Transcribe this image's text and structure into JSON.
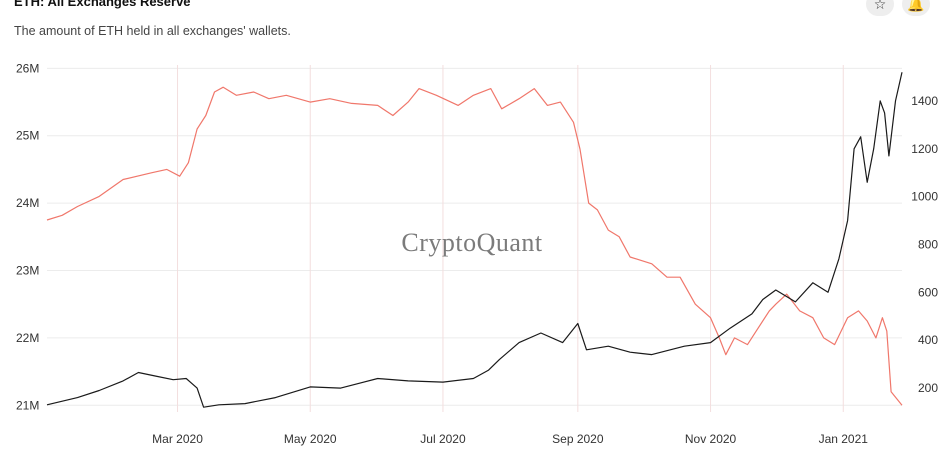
{
  "header": {
    "title": "ETH: All Exchanges Reserve",
    "subtitle": "The amount of ETH held in all exchanges' wallets.",
    "star_icon": "star-icon",
    "bell_icon": "bell-icon"
  },
  "watermark": "CryptoQuant",
  "colors": {
    "reserve_line": "#f0776b",
    "price_line": "#1a1a1a",
    "grid": "#ececec",
    "vgrid": "#f3dede"
  },
  "chart_data": {
    "type": "line",
    "title": "ETH: All Exchanges Reserve",
    "x_type": "date",
    "x_range": [
      "2020-01-01",
      "2021-01-28"
    ],
    "x_ticks": [
      {
        "date": "2020-03-01",
        "label": "Mar 2020"
      },
      {
        "date": "2020-05-01",
        "label": "May 2020"
      },
      {
        "date": "2020-07-01",
        "label": "Jul 2020"
      },
      {
        "date": "2020-09-01",
        "label": "Sep 2020"
      },
      {
        "date": "2020-11-01",
        "label": "Nov 2020"
      },
      {
        "date": "2021-01-01",
        "label": "Jan 2021"
      }
    ],
    "y_left": {
      "range": [
        20900000,
        26050000
      ],
      "ticks": [
        21000000,
        22000000,
        23000000,
        24000000,
        25000000,
        26000000
      ],
      "tick_labels": [
        "21M",
        "22M",
        "23M",
        "24M",
        "25M",
        "26M"
      ]
    },
    "y_right": {
      "range": [
        100,
        1550
      ],
      "ticks": [
        200,
        400,
        600,
        800,
        1000,
        1200,
        1400
      ],
      "tick_labels": [
        "200",
        "400",
        "600",
        "800",
        "1000",
        "1200",
        "1400"
      ]
    },
    "grid": true,
    "series": [
      {
        "axis": "left",
        "points": [
          [
            "2020-01-01",
            23750000
          ],
          [
            "2020-01-08",
            23820000
          ],
          [
            "2020-01-15",
            23950000
          ],
          [
            "2020-01-25",
            24100000
          ],
          [
            "2020-02-05",
            24350000
          ],
          [
            "2020-02-18",
            24450000
          ],
          [
            "2020-02-25",
            24500000
          ],
          [
            "2020-03-02",
            24400000
          ],
          [
            "2020-03-06",
            24600000
          ],
          [
            "2020-03-10",
            25100000
          ],
          [
            "2020-03-14",
            25300000
          ],
          [
            "2020-03-18",
            25650000
          ],
          [
            "2020-03-22",
            25720000
          ],
          [
            "2020-03-28",
            25600000
          ],
          [
            "2020-04-05",
            25650000
          ],
          [
            "2020-04-12",
            25550000
          ],
          [
            "2020-04-20",
            25600000
          ],
          [
            "2020-05-01",
            25500000
          ],
          [
            "2020-05-10",
            25550000
          ],
          [
            "2020-05-20",
            25480000
          ],
          [
            "2020-06-01",
            25450000
          ],
          [
            "2020-06-08",
            25300000
          ],
          [
            "2020-06-15",
            25500000
          ],
          [
            "2020-06-20",
            25700000
          ],
          [
            "2020-06-28",
            25600000
          ],
          [
            "2020-07-08",
            25450000
          ],
          [
            "2020-07-15",
            25600000
          ],
          [
            "2020-07-23",
            25700000
          ],
          [
            "2020-07-28",
            25400000
          ],
          [
            "2020-08-05",
            25550000
          ],
          [
            "2020-08-12",
            25700000
          ],
          [
            "2020-08-18",
            25450000
          ],
          [
            "2020-08-24",
            25500000
          ],
          [
            "2020-08-30",
            25200000
          ],
          [
            "2020-09-02",
            24800000
          ],
          [
            "2020-09-06",
            24000000
          ],
          [
            "2020-09-10",
            23900000
          ],
          [
            "2020-09-15",
            23600000
          ],
          [
            "2020-09-20",
            23500000
          ],
          [
            "2020-09-25",
            23200000
          ],
          [
            "2020-10-05",
            23100000
          ],
          [
            "2020-10-12",
            22900000
          ],
          [
            "2020-10-18",
            22900000
          ],
          [
            "2020-10-25",
            22500000
          ],
          [
            "2020-11-01",
            22300000
          ],
          [
            "2020-11-05",
            22000000
          ],
          [
            "2020-11-08",
            21750000
          ],
          [
            "2020-11-12",
            22000000
          ],
          [
            "2020-11-18",
            21900000
          ],
          [
            "2020-11-22",
            22100000
          ],
          [
            "2020-11-28",
            22400000
          ],
          [
            "2020-12-01",
            22500000
          ],
          [
            "2020-12-06",
            22650000
          ],
          [
            "2020-12-12",
            22400000
          ],
          [
            "2020-12-18",
            22300000
          ],
          [
            "2020-12-23",
            22000000
          ],
          [
            "2020-12-28",
            21900000
          ],
          [
            "2021-01-03",
            22300000
          ],
          [
            "2021-01-08",
            22400000
          ],
          [
            "2021-01-12",
            22250000
          ],
          [
            "2021-01-16",
            22000000
          ],
          [
            "2021-01-19",
            22300000
          ],
          [
            "2021-01-21",
            22100000
          ],
          [
            "2021-01-23",
            21200000
          ],
          [
            "2021-01-28",
            21000000
          ]
        ]
      },
      {
        "axis": "right",
        "points": [
          [
            "2020-01-01",
            130
          ],
          [
            "2020-01-15",
            160
          ],
          [
            "2020-01-25",
            190
          ],
          [
            "2020-02-05",
            230
          ],
          [
            "2020-02-12",
            265
          ],
          [
            "2020-02-20",
            250
          ],
          [
            "2020-02-28",
            235
          ],
          [
            "2020-03-05",
            240
          ],
          [
            "2020-03-10",
            200
          ],
          [
            "2020-03-13",
            120
          ],
          [
            "2020-03-20",
            130
          ],
          [
            "2020-04-01",
            135
          ],
          [
            "2020-04-15",
            160
          ],
          [
            "2020-05-01",
            205
          ],
          [
            "2020-05-15",
            200
          ],
          [
            "2020-06-01",
            240
          ],
          [
            "2020-06-15",
            230
          ],
          [
            "2020-07-01",
            225
          ],
          [
            "2020-07-15",
            240
          ],
          [
            "2020-07-22",
            275
          ],
          [
            "2020-07-27",
            320
          ],
          [
            "2020-08-05",
            390
          ],
          [
            "2020-08-15",
            430
          ],
          [
            "2020-08-25",
            390
          ],
          [
            "2020-09-01",
            470
          ],
          [
            "2020-09-05",
            360
          ],
          [
            "2020-09-15",
            375
          ],
          [
            "2020-09-25",
            350
          ],
          [
            "2020-10-05",
            340
          ],
          [
            "2020-10-20",
            375
          ],
          [
            "2020-11-01",
            390
          ],
          [
            "2020-11-10",
            450
          ],
          [
            "2020-11-20",
            510
          ],
          [
            "2020-11-25",
            570
          ],
          [
            "2020-12-01",
            610
          ],
          [
            "2020-12-10",
            560
          ],
          [
            "2020-12-18",
            640
          ],
          [
            "2020-12-25",
            600
          ],
          [
            "2020-12-30",
            740
          ],
          [
            "2021-01-03",
            900
          ],
          [
            "2021-01-06",
            1200
          ],
          [
            "2021-01-09",
            1250
          ],
          [
            "2021-01-12",
            1060
          ],
          [
            "2021-01-15",
            1200
          ],
          [
            "2021-01-18",
            1400
          ],
          [
            "2021-01-20",
            1350
          ],
          [
            "2021-01-22",
            1170
          ],
          [
            "2021-01-25",
            1400
          ],
          [
            "2021-01-28",
            1520
          ]
        ]
      }
    ]
  }
}
